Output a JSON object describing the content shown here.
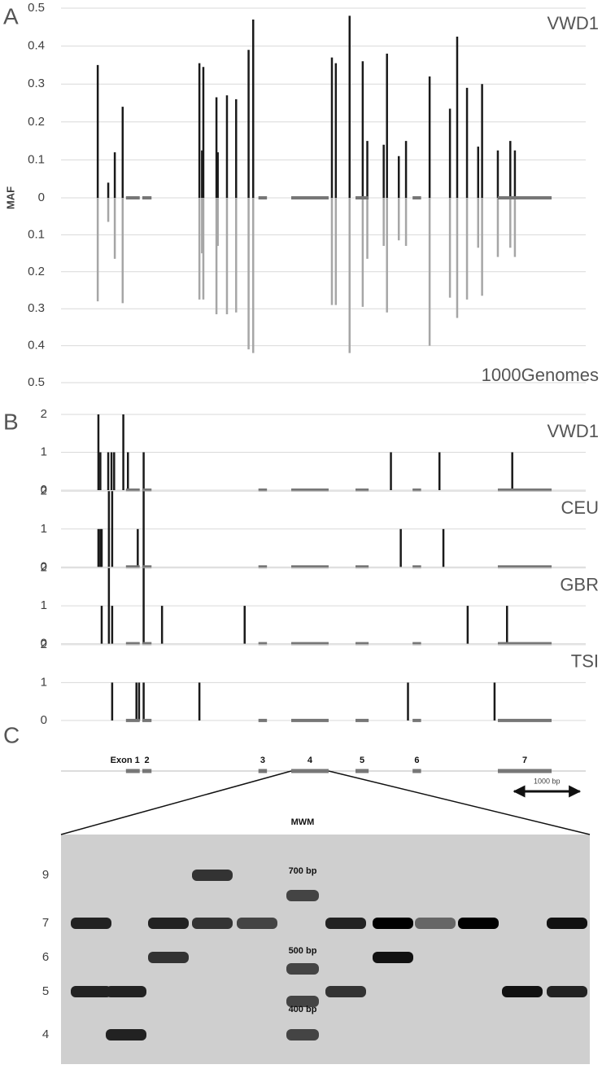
{
  "panel_labels": [
    "A",
    "B",
    "C"
  ],
  "exons": [
    [
      990,
      1200
    ],
    [
      1240,
      1380
    ],
    [
      3010,
      3140
    ],
    [
      3510,
      4080
    ],
    [
      4490,
      4690
    ],
    [
      5360,
      5490
    ],
    [
      6660,
      7480
    ]
  ],
  "chart_data": [
    {
      "type": "mirror-bar",
      "y_label": "MAF",
      "xlim": [
        0,
        8000
      ],
      "ylim": [
        0,
        0.5
      ],
      "yticks": [
        0,
        0.1,
        0.2,
        0.3,
        0.4,
        0.5
      ],
      "grid": true,
      "x": [
        560,
        720,
        820,
        940,
        2110,
        2150,
        2170,
        2370,
        2390,
        2530,
        2670,
        2860,
        2930,
        4130,
        4190,
        4400,
        4600,
        4670,
        4920,
        4970,
        5150,
        5260,
        5620,
        5930,
        6040,
        6190,
        6360,
        6420,
        6660,
        6850,
        6920
      ],
      "series": [
        {
          "name": "VWD1",
          "color": "#1a1a1a",
          "direction": "up",
          "values": [
            0.35,
            0.04,
            0.12,
            0.24,
            0.355,
            0.125,
            0.345,
            0.265,
            0.12,
            0.27,
            0.26,
            0.39,
            0.47,
            0.37,
            0.355,
            0.48,
            0.36,
            0.15,
            0.14,
            0.38,
            0.11,
            0.15,
            0.32,
            0.235,
            0.425,
            0.29,
            0.135,
            0.3,
            0.125,
            0.15,
            0.125
          ]
        },
        {
          "name": "1000Genomes",
          "color": "#a6a6a6",
          "direction": "down",
          "values": [
            0.28,
            0.065,
            0.165,
            0.285,
            0.275,
            0.15,
            0.275,
            0.315,
            0.13,
            0.315,
            0.31,
            0.41,
            0.42,
            0.29,
            0.29,
            0.42,
            0.295,
            0.165,
            0.13,
            0.31,
            0.115,
            0.13,
            0.4,
            0.27,
            0.325,
            0.275,
            0.135,
            0.265,
            0.16,
            0.135,
            0.16
          ]
        }
      ]
    },
    {
      "type": "bar",
      "title": "VWD1",
      "xlim": [
        0,
        8000
      ],
      "ylim": [
        0,
        2
      ],
      "yticks": [
        0,
        1,
        2
      ],
      "grid": true,
      "color": "#1a1a1a",
      "x": [
        570,
        600,
        720,
        770,
        810,
        950,
        1020,
        1260,
        5030,
        5770,
        6880
      ],
      "values": [
        2,
        1,
        1,
        1,
        1,
        2,
        1,
        1,
        1,
        1,
        1
      ]
    },
    {
      "type": "bar",
      "title": "CEU",
      "xlim": [
        0,
        8000
      ],
      "ylim": [
        0,
        2
      ],
      "yticks": [
        0,
        1,
        2
      ],
      "grid": true,
      "color": "#1a1a1a",
      "x": [
        570,
        600,
        620,
        730,
        780,
        1170,
        1260,
        5180,
        5830
      ],
      "values": [
        1,
        1,
        1,
        2,
        2,
        1,
        2,
        1,
        1
      ]
    },
    {
      "type": "bar",
      "title": "GBR",
      "xlim": [
        0,
        8000
      ],
      "ylim": [
        0,
        2
      ],
      "yticks": [
        0,
        1,
        2
      ],
      "grid": true,
      "color": "#1a1a1a",
      "x": [
        620,
        730,
        780,
        1260,
        1540,
        2800,
        6200,
        6800
      ],
      "values": [
        1,
        2,
        1,
        2,
        1,
        1,
        1,
        1
      ]
    },
    {
      "type": "bar",
      "title": "TSI",
      "xlim": [
        0,
        8000
      ],
      "ylim": [
        0,
        2
      ],
      "yticks": [
        0,
        1,
        2
      ],
      "grid": true,
      "color": "#1a1a1a",
      "x": [
        780,
        1150,
        1190,
        1260,
        2110,
        5290,
        6610
      ],
      "values": [
        1,
        1,
        1,
        1,
        1,
        1,
        1
      ]
    }
  ],
  "exon_map": {
    "labels": [
      "Exon 1",
      "2",
      "3",
      "4",
      "5",
      "6",
      "7"
    ],
    "scale_bar": {
      "label": "1000 bp",
      "length": 1000
    }
  },
  "gel": {
    "marker_label": "MWM",
    "marker_sizes": [
      "700 bp",
      "500 bp",
      "400 bp"
    ],
    "size_labels": [
      "9",
      "7",
      "6",
      "5",
      "4"
    ]
  }
}
